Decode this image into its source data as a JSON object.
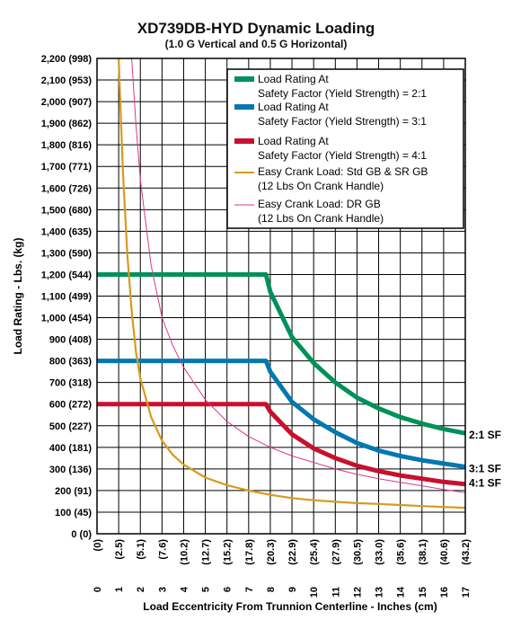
{
  "chart_data": {
    "type": "line",
    "title": "XD739DB-HYD Dynamic Loading",
    "subtitle": "(1.0 G Vertical and 0.5 G Horizontal)",
    "xlabel": "Load Eccentricity From Trunnion Centerline - Inches (cm)",
    "ylabel": "Load Rating - Lbs. (kg)",
    "xlim": [
      0,
      17
    ],
    "ylim": [
      0,
      2200
    ],
    "grid": true,
    "legend_position": "top-right",
    "x_ticks": [
      0,
      1,
      2,
      3,
      4,
      5,
      6,
      7,
      8,
      9,
      10,
      11,
      12,
      13,
      14,
      15,
      16,
      17
    ],
    "x_tick_cm": [
      "(0)",
      "(2.5)",
      "(5.1)",
      "(7.6)",
      "(10.2)",
      "(12.7)",
      "(15.2)",
      "(17.8)",
      "(20.3)",
      "(22.9)",
      "(25.4)",
      "(27.9)",
      "(30.5)",
      "(33.0)",
      "(35.6)",
      "(38.1)",
      "(40.6)",
      "(43.2)"
    ],
    "y_tick_labels": [
      "0 (0)",
      "100 (45)",
      "200 (91)",
      "300 (136)",
      "400 (181)",
      "500 (227)",
      "600 (272)",
      "700 (318)",
      "800 (363)",
      "900 (408)",
      "1,000 (454)",
      "1,100 (499)",
      "1,200 (544)",
      "1,300 (590)",
      "1,400 (635)",
      "1,500 (680)",
      "1,600 (726)",
      "1,700 (771)",
      "1,800 (816)",
      "1,900 (862)",
      "2,000 (907)",
      "2,100 (953)",
      "2,200 (998)"
    ],
    "series": [
      {
        "name": "Load Rating At Safety Factor (Yield Strength) = 2:1",
        "color": "#00905a",
        "style": "thick",
        "end_label": "2:1 SF",
        "x": [
          0,
          1,
          2,
          3,
          4,
          5,
          6,
          7,
          7.8,
          8,
          9,
          10,
          11,
          12,
          13,
          14,
          15,
          16,
          17
        ],
        "y": [
          1200,
          1200,
          1200,
          1200,
          1200,
          1200,
          1200,
          1200,
          1200,
          1120,
          910,
          790,
          700,
          630,
          580,
          540,
          510,
          485,
          465
        ]
      },
      {
        "name": "Load Rating At Safety Factor (Yield Strength) = 3:1",
        "color": "#0078b0",
        "style": "thick",
        "end_label": "3:1 SF",
        "x": [
          0,
          1,
          2,
          3,
          4,
          5,
          6,
          7,
          7.8,
          8,
          9,
          10,
          11,
          12,
          13,
          14,
          15,
          16,
          17
        ],
        "y": [
          800,
          800,
          800,
          800,
          800,
          800,
          800,
          800,
          800,
          750,
          610,
          530,
          470,
          420,
          385,
          360,
          340,
          325,
          310
        ]
      },
      {
        "name": "Load Rating At Safety Factor (Yield Strength) = 4:1",
        "color": "#c8102e",
        "style": "thick",
        "end_label": "4:1 SF",
        "x": [
          0,
          1,
          2,
          3,
          4,
          5,
          6,
          7,
          7.8,
          8,
          9,
          10,
          11,
          12,
          13,
          14,
          15,
          16,
          17
        ],
        "y": [
          600,
          600,
          600,
          600,
          600,
          600,
          600,
          600,
          600,
          565,
          460,
          395,
          350,
          315,
          290,
          270,
          255,
          240,
          230
        ]
      },
      {
        "name": "Easy Crank Load: Std GB & SR GB (12 Lbs On Crank Handle)",
        "color": "#d89a1e",
        "style": "medium",
        "x": [
          1.0,
          1.2,
          1.4,
          1.6,
          1.8,
          2.0,
          2.5,
          3,
          3.5,
          4,
          5,
          6,
          7,
          8,
          9,
          10,
          11,
          12,
          13,
          14,
          15,
          16,
          17
        ],
        "y": [
          2200,
          1670,
          1290,
          1030,
          840,
          720,
          540,
          430,
          365,
          320,
          260,
          225,
          200,
          180,
          165,
          155,
          148,
          142,
          138,
          133,
          128,
          124,
          120
        ]
      },
      {
        "name": "Easy Crank Load: DR GB (12 Lbs On Crank Handle)",
        "color": "#d63a8a",
        "style": "thin",
        "x": [
          1.6,
          1.8,
          2.0,
          2.5,
          3,
          3.5,
          4,
          5,
          6,
          7,
          8,
          9,
          10,
          11,
          12,
          13,
          14,
          15,
          16,
          17
        ],
        "y": [
          2200,
          1890,
          1640,
          1240,
          1000,
          870,
          770,
          620,
          520,
          450,
          400,
          360,
          330,
          300,
          275,
          255,
          238,
          222,
          205,
          190
        ]
      }
    ]
  }
}
